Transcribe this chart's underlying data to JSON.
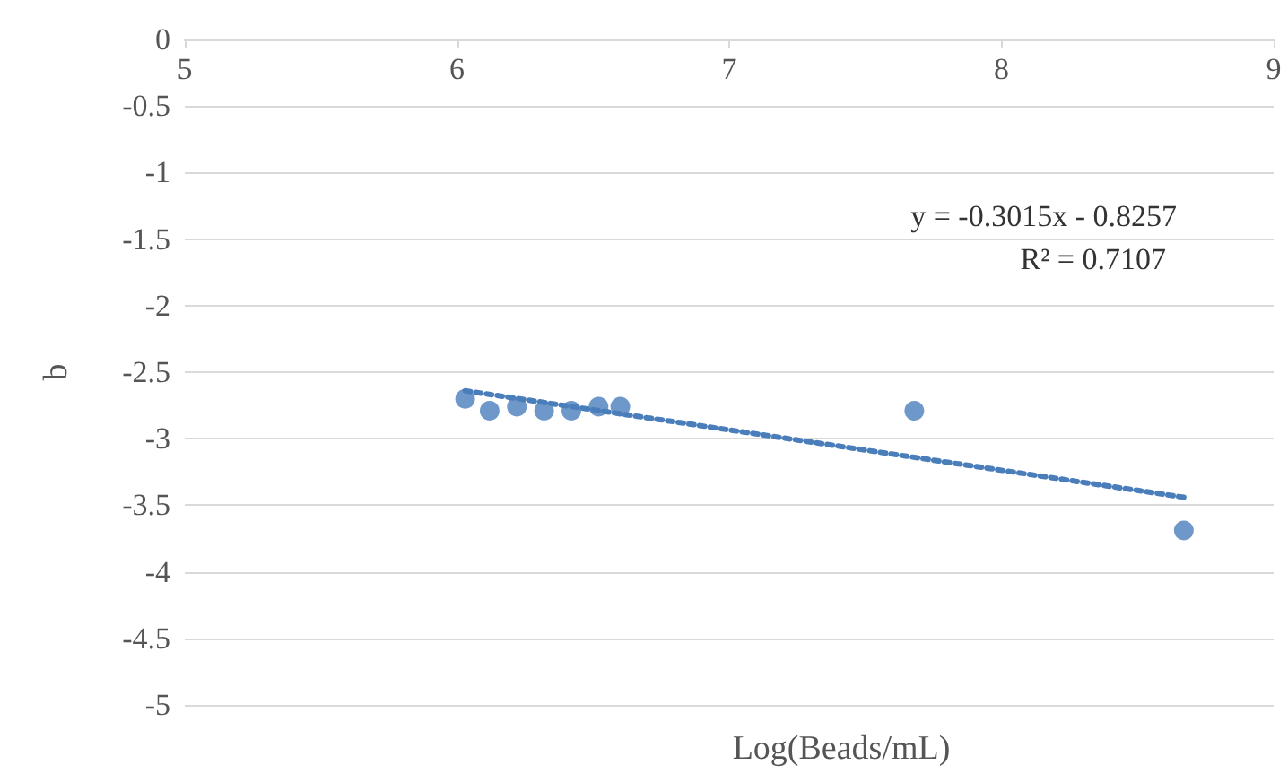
{
  "chart_data": {
    "type": "scatter",
    "xlabel": "Log(Beads/mL)",
    "ylabel": "b",
    "xlim": [
      5,
      9
    ],
    "xticks": [
      5,
      6,
      7,
      8,
      9
    ],
    "ylim": [
      -5,
      0
    ],
    "yticks": [
      -5,
      -4.5,
      -4,
      -3.5,
      -3,
      -2.5,
      -2,
      -1.5,
      -1,
      -0.5,
      0
    ],
    "grid": "y",
    "marker": "circle",
    "series": [
      {
        "type": "scatter",
        "color": "#4a7ebb",
        "x": [
          6.03,
          6.12,
          6.22,
          6.32,
          6.42,
          6.52,
          6.6,
          7.68,
          8.67
        ],
        "values": [
          -2.7,
          -2.79,
          -2.76,
          -2.79,
          -2.79,
          -2.76,
          -2.76,
          -2.79,
          -3.69
        ]
      },
      {
        "type": "line",
        "color": "#4a7ebb",
        "line_style": "dotted",
        "marker": "none",
        "x": [
          6.03,
          8.67
        ],
        "values": [
          -2.64,
          -3.44
        ]
      }
    ],
    "annotations": [
      "y = -0.3015x - 0.8257",
      "R² = 0.7107"
    ]
  }
}
